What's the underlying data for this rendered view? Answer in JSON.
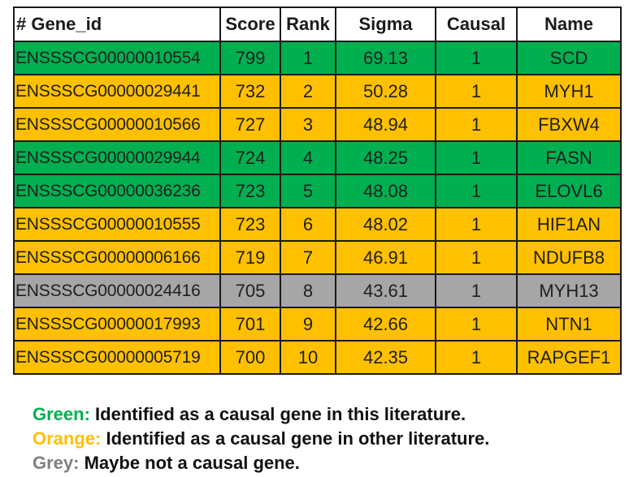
{
  "table": {
    "headers": [
      "# Gene_id",
      "Score",
      "Rank",
      "Sigma",
      "Causal",
      "Name"
    ],
    "rows": [
      {
        "category": "green",
        "gene_id": "ENSSSCG00000010554",
        "score": "799",
        "rank": "1",
        "sigma": "69.13",
        "causal": "1",
        "name": "SCD"
      },
      {
        "category": "orange",
        "gene_id": "ENSSSCG00000029441",
        "score": "732",
        "rank": "2",
        "sigma": "50.28",
        "causal": "1",
        "name": "MYH1"
      },
      {
        "category": "orange",
        "gene_id": "ENSSSCG00000010566",
        "score": "727",
        "rank": "3",
        "sigma": "48.94",
        "causal": "1",
        "name": "FBXW4"
      },
      {
        "category": "green",
        "gene_id": "ENSSSCG00000029944",
        "score": "724",
        "rank": "4",
        "sigma": "48.25",
        "causal": "1",
        "name": "FASN"
      },
      {
        "category": "green",
        "gene_id": "ENSSSCG00000036236",
        "score": "723",
        "rank": "5",
        "sigma": "48.08",
        "causal": "1",
        "name": "ELOVL6"
      },
      {
        "category": "orange",
        "gene_id": "ENSSSCG00000010555",
        "score": "723",
        "rank": "6",
        "sigma": "48.02",
        "causal": "1",
        "name": "HIF1AN"
      },
      {
        "category": "orange",
        "gene_id": "ENSSSCG00000006166",
        "score": "719",
        "rank": "7",
        "sigma": "46.91",
        "causal": "1",
        "name": "NDUFB8"
      },
      {
        "category": "grey",
        "gene_id": "ENSSSCG00000024416",
        "score": "705",
        "rank": "8",
        "sigma": "43.61",
        "causal": "1",
        "name": "MYH13"
      },
      {
        "category": "orange",
        "gene_id": "ENSSSCG00000017993",
        "score": "701",
        "rank": "9",
        "sigma": "42.66",
        "causal": "1",
        "name": "NTN1"
      },
      {
        "category": "orange",
        "gene_id": "ENSSSCG00000005719",
        "score": "700",
        "rank": "10",
        "sigma": "42.35",
        "causal": "1",
        "name": "RAPGEF1"
      }
    ]
  },
  "legend": [
    {
      "key": "Green:",
      "text": " Identified as a causal gene in this literature.",
      "color": "#00b050"
    },
    {
      "key": "Orange:",
      "text": " Identified as a causal gene in other literature.",
      "color": "#ffc000"
    },
    {
      "key": "Grey:",
      "text": " Maybe not a causal gene.",
      "color": "#808080"
    }
  ],
  "colors": {
    "green": "#00b050",
    "orange": "#ffc000",
    "grey": "#a6a6a6"
  }
}
